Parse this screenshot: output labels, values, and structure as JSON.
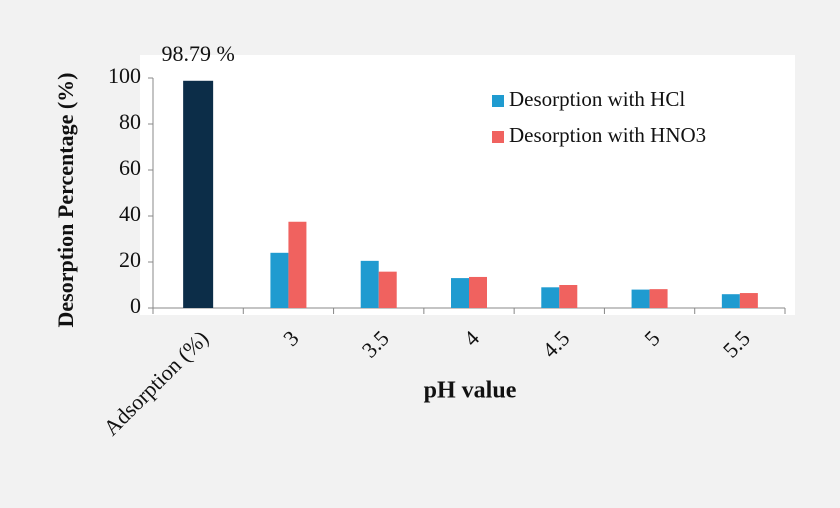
{
  "chart_data": {
    "type": "bar",
    "y_label": "Desorption Percentage (%)",
    "x_label": "pH value",
    "categories": [
      "Adsorption (%)",
      "3",
      "3.5",
      "4",
      "4.5",
      "5",
      "5.5"
    ],
    "adsorption": {
      "value": 98.79,
      "value_label": "98.79 %",
      "color": "#0c2d48"
    },
    "series": [
      {
        "name": "Desorption with HCl",
        "color": "#1f9bd0",
        "values": [
          null,
          24,
          20.5,
          13,
          9,
          8,
          6
        ]
      },
      {
        "name": "Desorption with HNO3",
        "color": "#f0625f",
        "values": [
          null,
          37.5,
          15.8,
          13.5,
          10,
          8.2,
          6.5
        ]
      }
    ],
    "ylim": [
      0,
      100
    ],
    "yticks": [
      0,
      20,
      40,
      60,
      80,
      100
    ],
    "grid": false,
    "legend": "top-right"
  }
}
